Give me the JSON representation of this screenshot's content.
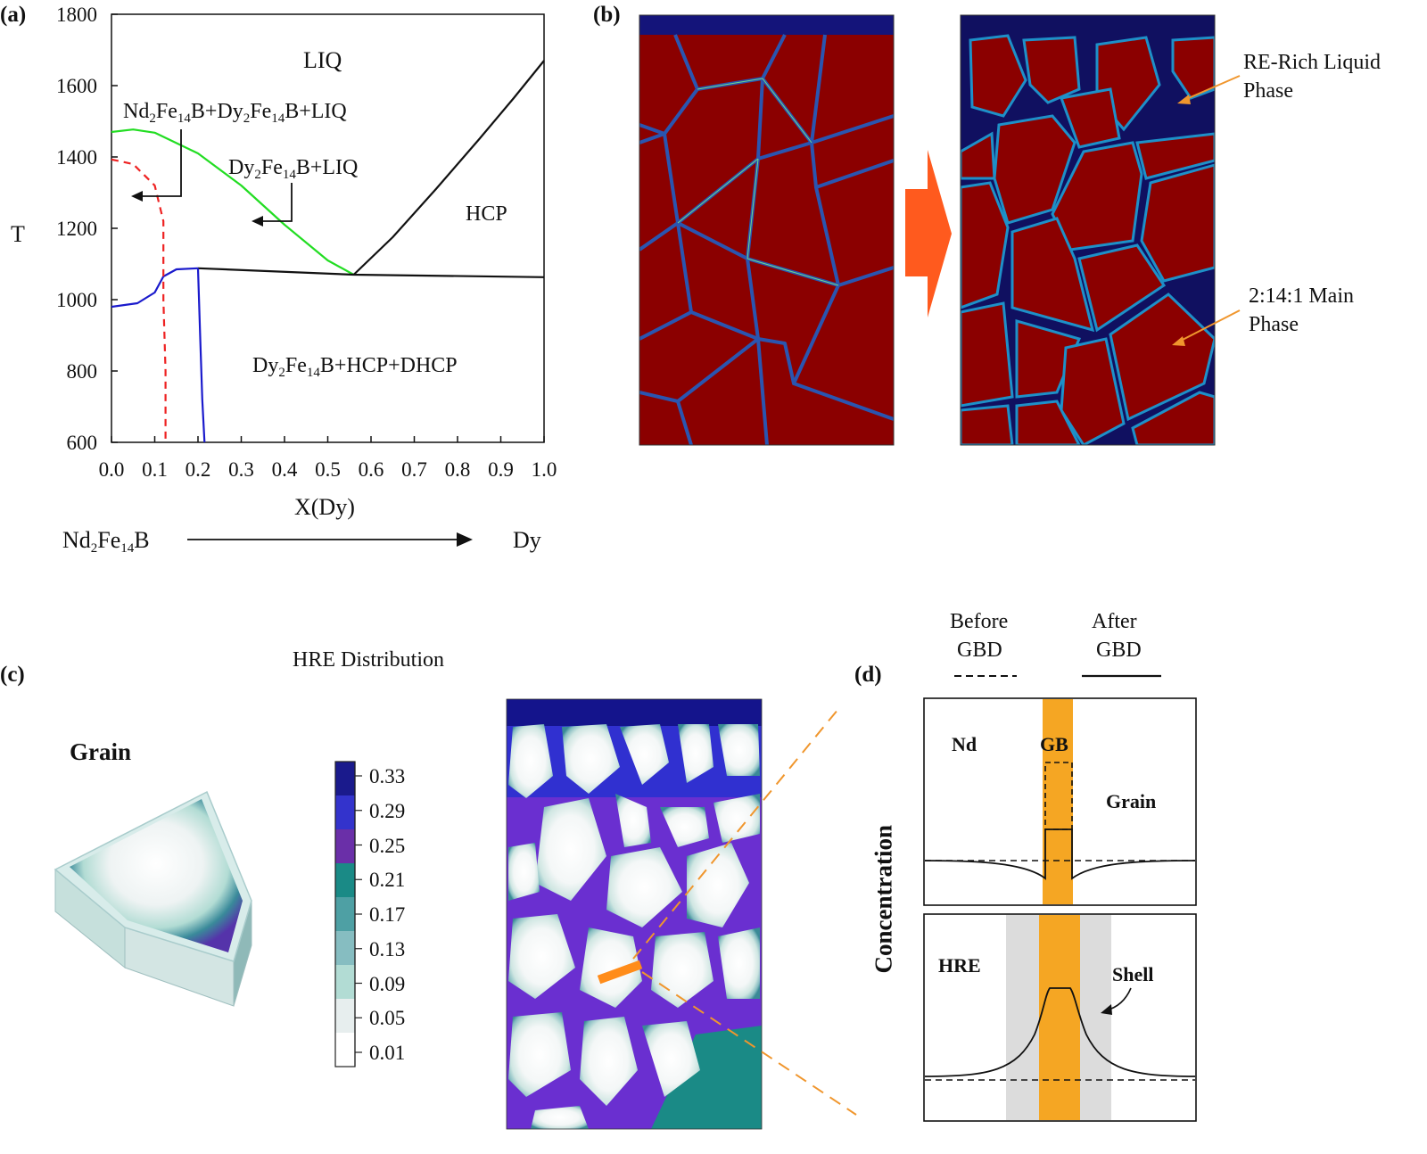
{
  "panels": {
    "a": {
      "label": "(a)",
      "chart_data": {
        "type": "line",
        "xlabel": "X(Dy)",
        "ylabel": "T",
        "xlim": [
          0.0,
          1.0
        ],
        "ylim": [
          600,
          1800
        ],
        "x_ticks": [
          "0.0",
          "0.1",
          "0.2",
          "0.3",
          "0.4",
          "0.5",
          "0.6",
          "0.7",
          "0.8",
          "0.9",
          "1.0"
        ],
        "y_ticks": [
          "1800",
          "1600",
          "1400",
          "1200",
          "1000",
          "800",
          "600"
        ],
        "region_labels": {
          "liq": "LIQ",
          "hcp": "HCP",
          "dy_liq": "Dy2Fe14B+LIQ",
          "nd_dy_liq": "Nd2Fe14B+Dy2Fe14B+LIQ",
          "bottom": "Dy2Fe14B+HCP+DHCP"
        },
        "series": [
          {
            "color": "#22dd22",
            "style": "solid",
            "points": [
              [
                0.0,
                1470
              ],
              [
                0.05,
                1477
              ],
              [
                0.1,
                1468
              ],
              [
                0.2,
                1410
              ],
              [
                0.3,
                1320
              ],
              [
                0.4,
                1210
              ],
              [
                0.5,
                1110
              ],
              [
                0.56,
                1070
              ]
            ]
          },
          {
            "color": "#111111",
            "style": "solid",
            "points": [
              [
                0.56,
                1070
              ],
              [
                0.65,
                1175
              ],
              [
                0.75,
                1310
              ],
              [
                0.85,
                1450
              ],
              [
                0.93,
                1565
              ],
              [
                1.0,
                1670
              ]
            ]
          },
          {
            "color": "#111111",
            "style": "solid",
            "points": [
              [
                0.2,
                1088
              ],
              [
                0.56,
                1070
              ],
              [
                1.0,
                1063
              ]
            ]
          },
          {
            "color": "#1a1acc",
            "style": "solid",
            "points": [
              [
                0.0,
                980
              ],
              [
                0.06,
                990
              ],
              [
                0.1,
                1020
              ],
              [
                0.12,
                1065
              ],
              [
                0.15,
                1085
              ],
              [
                0.2,
                1088
              ]
            ]
          },
          {
            "color": "#1a1acc",
            "style": "solid",
            "points": [
              [
                0.2,
                1088
              ],
              [
                0.205,
                900
              ],
              [
                0.21,
                720
              ],
              [
                0.215,
                600
              ]
            ]
          },
          {
            "color": "#ee2222",
            "style": "dashed",
            "points": [
              [
                0.0,
                1393
              ],
              [
                0.05,
                1380
              ],
              [
                0.1,
                1320
              ],
              [
                0.12,
                1220
              ],
              [
                0.12,
                1000
              ],
              [
                0.125,
                800
              ],
              [
                0.125,
                600
              ]
            ]
          }
        ]
      },
      "composition": {
        "from": "Nd2Fe14B",
        "to": "Dy"
      }
    },
    "b": {
      "label": "(b)",
      "annotations": {
        "liquid_1": "RE-Rich Liquid",
        "liquid_2": "Phase",
        "main_1": "2:14:1 Main",
        "main_2": "Phase"
      },
      "colors": {
        "grain": "#8b0000",
        "boundary": "#1e3c96",
        "arrow": "#ff5a1e",
        "annotation": "#f0962d"
      }
    },
    "c": {
      "label": "(c)",
      "title": "HRE Distribution",
      "grain_label": "Grain",
      "colorbar_values": [
        "0.33",
        "0.29",
        "0.25",
        "0.21",
        "0.17",
        "0.13",
        "0.09",
        "0.05",
        "0.01"
      ],
      "colorbar_colors": [
        "#1a1a8c",
        "#3333cc",
        "#6a2fa8",
        "#1a8a86",
        "#4ea0a4",
        "#86bdc1",
        "#b2dcd4",
        "#e7eeee",
        "#ffffff"
      ]
    },
    "d": {
      "label": "(d)",
      "legend": {
        "before_1": "Before",
        "before_2": "GBD",
        "after_1": "After",
        "after_2": "GBD"
      },
      "ylabel": "Concentration",
      "top": {
        "left": "Nd",
        "center": "GB",
        "right": "Grain"
      },
      "bottom": {
        "left": "HRE",
        "right": "Shell"
      },
      "colors": {
        "gb": "#f5a623",
        "shell": "#dcdcdc"
      }
    }
  }
}
